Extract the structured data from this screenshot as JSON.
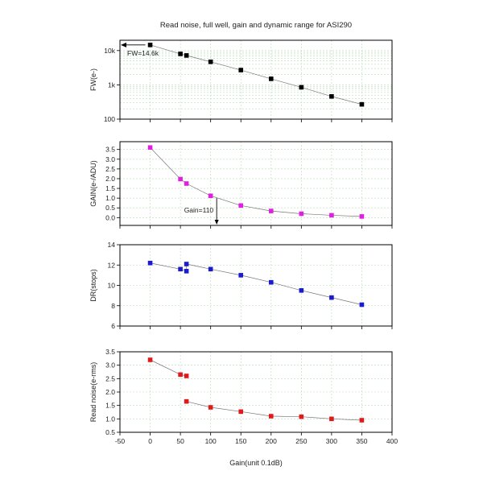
{
  "chart_data": {
    "title": "Read noise, full well, gain and dynamic range for ASI290",
    "xlabel": "Gain(unit 0.1dB)",
    "xlim": [
      -50,
      400
    ],
    "xticks": [
      "-50",
      "0",
      "50",
      "100",
      "150",
      "200",
      "250",
      "300",
      "350",
      "400"
    ],
    "x_tick_values": [
      -50,
      0,
      50,
      100,
      150,
      200,
      250,
      300,
      350,
      400
    ],
    "panels": [
      {
        "type": "scatter",
        "ylabel": "FW(e-)",
        "yscale": "log",
        "ylim": [
          100,
          20000
        ],
        "yticks": [
          "100",
          "1k",
          "10k"
        ],
        "y_tick_values": [
          100,
          1000,
          10000
        ],
        "grid": true,
        "color": "#000000",
        "x": [
          0,
          50,
          60,
          100,
          150,
          200,
          250,
          300,
          350
        ],
        "y": [
          14600,
          8000,
          7200,
          4700,
          2700,
          1500,
          850,
          460,
          270
        ],
        "annotation": {
          "text": "FW=14.6k",
          "x": 0,
          "y": 14600
        }
      },
      {
        "type": "scatter",
        "ylabel": "GAIN(e-/ADU)",
        "yscale": "linear",
        "ylim": [
          -0.4,
          3.9
        ],
        "yticks": [
          "0.0",
          "0.5",
          "1.0",
          "1.5",
          "2.0",
          "2.5",
          "3.0",
          "3.5"
        ],
        "y_tick_values": [
          0,
          0.5,
          1,
          1.5,
          2,
          2.5,
          3,
          3.5
        ],
        "grid": true,
        "color": "#e020e0",
        "x": [
          0,
          50,
          60,
          100,
          150,
          200,
          250,
          300,
          350
        ],
        "y": [
          3.6,
          1.98,
          1.75,
          1.12,
          0.62,
          0.34,
          0.2,
          0.12,
          0.06
        ],
        "annotation": {
          "text": "Gain=110",
          "x": 110,
          "y": 1.0
        }
      },
      {
        "type": "scatter",
        "ylabel": "DR(stops)",
        "yscale": "linear",
        "ylim": [
          6,
          14
        ],
        "yticks": [
          "6",
          "8",
          "10",
          "12",
          "14"
        ],
        "y_tick_values": [
          6,
          8,
          10,
          12,
          14
        ],
        "grid": true,
        "color": "#1a1ad0",
        "x": [
          0,
          50,
          60,
          60,
          100,
          150,
          200,
          250,
          300,
          350
        ],
        "y": [
          12.2,
          11.6,
          11.4,
          12.1,
          11.6,
          11.0,
          10.3,
          9.5,
          8.8,
          8.1
        ]
      },
      {
        "type": "scatter",
        "ylabel": "Read noise(e-rms)",
        "yscale": "linear",
        "ylim": [
          0.5,
          3.5
        ],
        "yticks": [
          "0.5",
          "1.0",
          "1.5",
          "2.0",
          "2.5",
          "3.0",
          "3.5"
        ],
        "y_tick_values": [
          0.5,
          1,
          1.5,
          2,
          2.5,
          3,
          3.5
        ],
        "grid": true,
        "color": "#e01a1a",
        "x": [
          0,
          50,
          60,
          60,
          100,
          150,
          200,
          250,
          300,
          350
        ],
        "y": [
          3.2,
          2.65,
          2.6,
          1.65,
          1.43,
          1.27,
          1.1,
          1.08,
          1.0,
          0.95
        ],
        "line_break_after_index": 2
      }
    ]
  }
}
